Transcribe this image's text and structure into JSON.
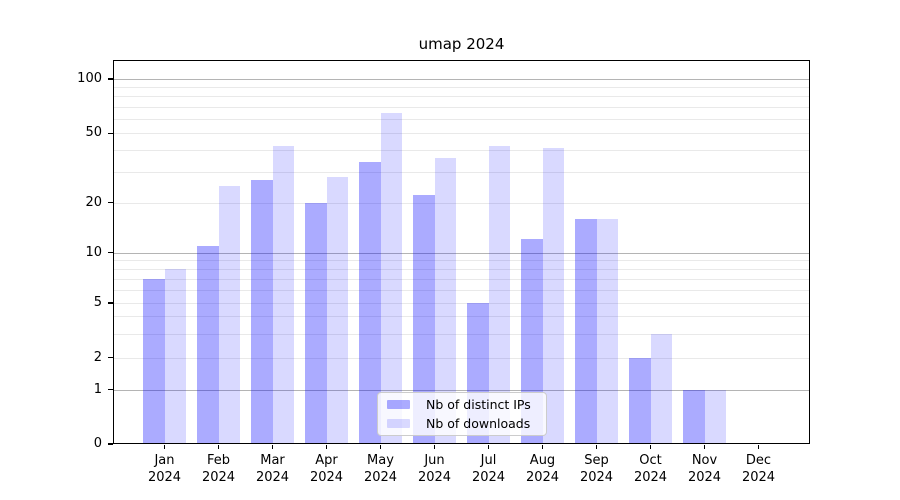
{
  "chart_data": {
    "type": "bar",
    "title": "umap 2024",
    "categories": [
      "Jan",
      "Feb",
      "Mar",
      "Apr",
      "May",
      "Jun",
      "Jul",
      "Aug",
      "Sep",
      "Oct",
      "Nov",
      "Dec"
    ],
    "year": "2024",
    "x_tick_labels": [
      "Jan\n2024",
      "Feb\n2024",
      "Mar\n2024",
      "Apr\n2024",
      "May\n2024",
      "Jun\n2024",
      "Jul\n2024",
      "Aug\n2024",
      "Sep\n2024",
      "Oct\n2024",
      "Nov\n2024",
      "Dec\n2024"
    ],
    "series": [
      {
        "name": "Nb of distinct IPs",
        "color": "rgba(0,0,255,0.33)",
        "values": [
          7,
          11,
          27,
          20,
          34,
          22,
          5,
          12,
          16,
          2,
          1,
          0
        ]
      },
      {
        "name": "Nb of downloads",
        "color": "rgba(0,0,255,0.15)",
        "values": [
          8,
          25,
          42,
          28,
          65,
          36,
          42,
          41,
          16,
          3,
          1,
          0
        ]
      }
    ],
    "yscale": "symlog",
    "ylim": [
      0,
      115
    ],
    "y_ticks": [
      100,
      50,
      20,
      10,
      5,
      2,
      1,
      0
    ],
    "y_tick_labels": [
      "100",
      "50",
      "20",
      "10",
      "5",
      "2",
      "1",
      "0"
    ],
    "major_gridlines": [
      100,
      10,
      1
    ],
    "minor_gridlines": [
      90,
      80,
      70,
      60,
      50,
      40,
      30,
      20,
      9,
      8,
      7,
      6,
      5,
      4,
      3,
      2
    ],
    "legend_position": "lower center",
    "grid": "on"
  },
  "colors": {
    "bar_distinct_ips": "rgba(0,0,255,0.33)",
    "bar_downloads": "rgba(0,0,255,0.15)",
    "grid_major": "#b4b4b4",
    "grid_minor": "#e9e9e9",
    "axis": "#000000",
    "legend_border": "#cccccc"
  }
}
